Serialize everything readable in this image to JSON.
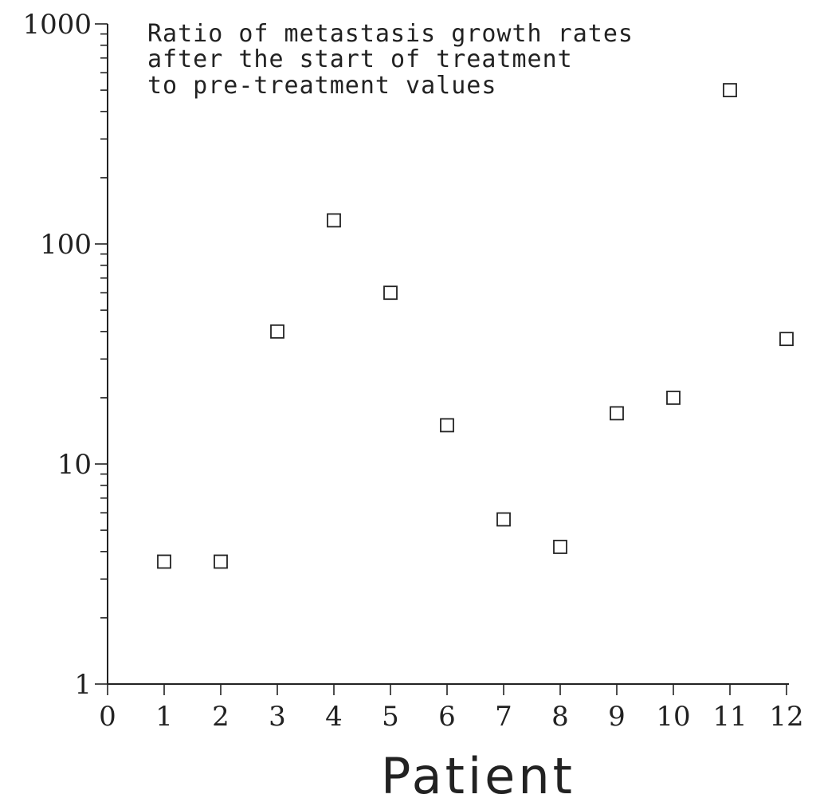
{
  "chart_data": {
    "type": "scatter",
    "title_lines": [
      "Ratio of metastasis growth rates",
      "after the start of treatment",
      "to pre-treatment values"
    ],
    "xlabel": "Patient",
    "ylabel": "",
    "x_scale": "linear",
    "y_scale": "log",
    "xlim": [
      0,
      12
    ],
    "ylim": [
      1,
      1000
    ],
    "x_ticks": [
      "0",
      "1",
      "2",
      "3",
      "4",
      "5",
      "6",
      "7",
      "8",
      "9",
      "10",
      "11",
      "12"
    ],
    "y_ticks": [
      "1",
      "10",
      "100",
      "1000"
    ],
    "grid": false,
    "legend": "none",
    "marker": "open-square",
    "series": [
      {
        "x": [
          1,
          2,
          3,
          4,
          5,
          6,
          7,
          8,
          9,
          10,
          11,
          12
        ],
        "y": [
          3.6,
          3.6,
          40,
          128,
          60,
          15,
          5.6,
          4.2,
          17,
          20,
          500,
          37
        ]
      }
    ]
  }
}
